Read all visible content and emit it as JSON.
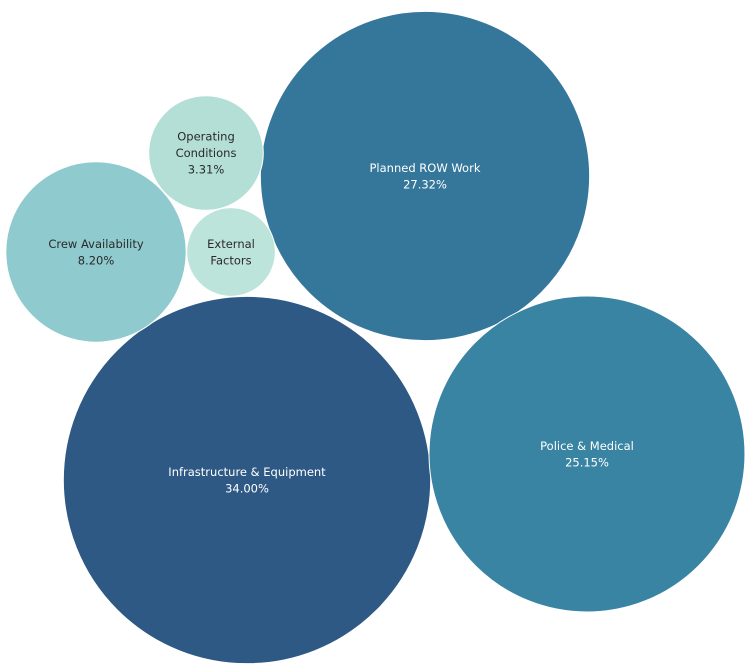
{
  "chart_data": {
    "type": "packed-bubble",
    "title": "",
    "bubbles": [
      {
        "category": "Infrastructure & Equipment",
        "label_lines": [
          "Infrastructure & Equipment"
        ],
        "value": 34.0,
        "value_label": "34.00%",
        "color": "#2E5985",
        "text_color": "#ffffff"
      },
      {
        "category": "Planned ROW Work",
        "label_lines": [
          "Planned ROW Work"
        ],
        "value": 27.32,
        "value_label": "27.32%",
        "color": "#35779A",
        "text_color": "#ffffff"
      },
      {
        "category": "Police & Medical",
        "label_lines": [
          "Police & Medical"
        ],
        "value": 25.15,
        "value_label": "25.15%",
        "color": "#3983A3",
        "text_color": "#ffffff"
      },
      {
        "category": "Crew Availability",
        "label_lines": [
          "Crew Availability"
        ],
        "value": 8.2,
        "value_label": "8.20%",
        "color": "#8FCACE",
        "text_color": "#2a2a2a"
      },
      {
        "category": "Operating Conditions",
        "label_lines": [
          "Operating",
          "Conditions"
        ],
        "value": 3.31,
        "value_label": "3.31%",
        "color": "#B3DFD6",
        "text_color": "#2a2a2a"
      },
      {
        "category": "External Factors",
        "label_lines": [
          "External",
          "Factors"
        ],
        "value": 1.98,
        "value_label": "",
        "color": "#BDE4DA",
        "text_color": "#2a2a2a"
      }
    ]
  }
}
